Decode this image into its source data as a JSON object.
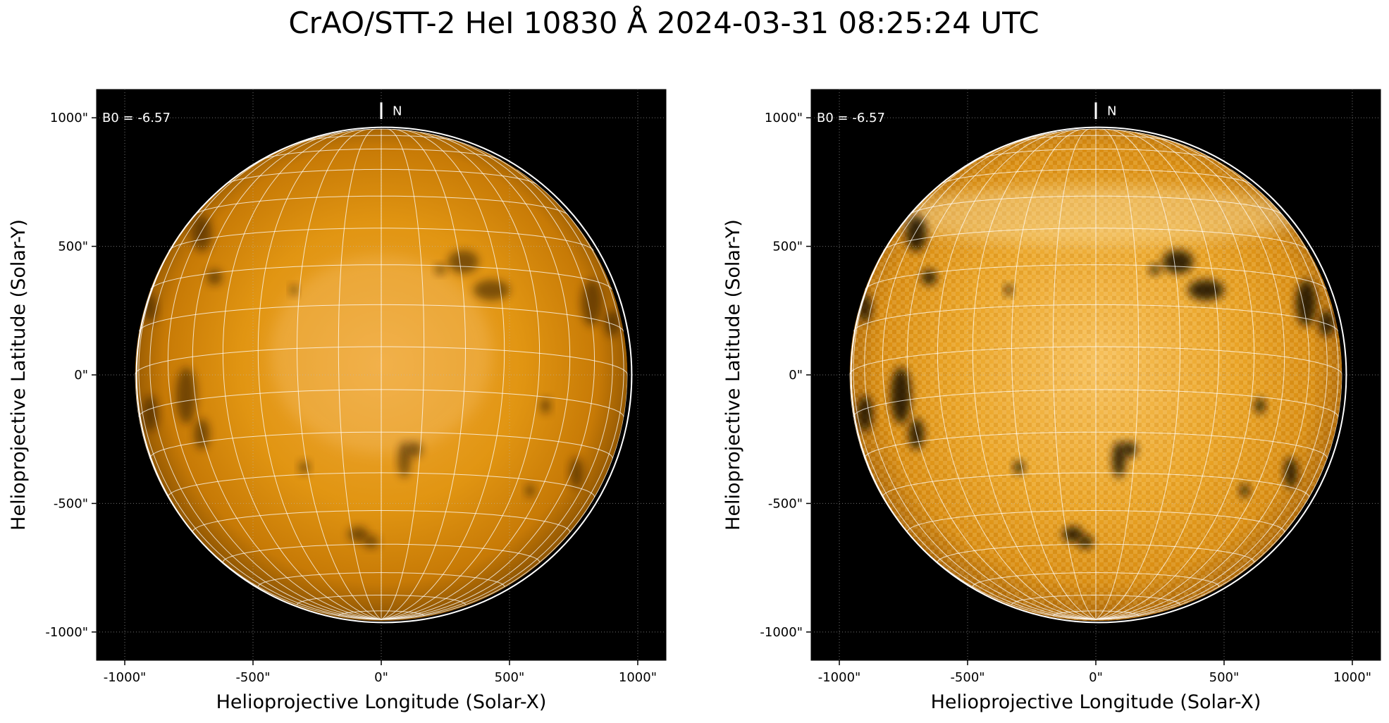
{
  "title": "CrAO/STT-2 HeI 10830 Å 2024-03-31 08:25:24 UTC",
  "colors": {
    "background": "#000000",
    "disk": "#e0940f",
    "grid": "#ffffff"
  },
  "panels": [
    {
      "name": "left",
      "b0_label": "B0 = -6.57",
      "north_label": "N",
      "xlabel": "Helioprojective Longitude (Solar-X)",
      "ylabel": "Helioprojective Latitude (Solar-Y)",
      "xticks": [
        "-1000\"",
        "-500\"",
        "0\"",
        "500\"",
        "1000\""
      ],
      "yticks": [
        "1000\"",
        "500\"",
        "0\"",
        "-500\"",
        "-1000\""
      ],
      "style": "smooth"
    },
    {
      "name": "right",
      "b0_label": "B0 = -6.57",
      "north_label": "N",
      "xlabel": "Helioprojective Longitude (Solar-X)",
      "ylabel": "Helioprojective Latitude (Solar-Y)",
      "xticks": [
        "-1000\"",
        "-500\"",
        "0\"",
        "500\"",
        "1000\""
      ],
      "yticks": [
        "1000\"",
        "500\"",
        "0\"",
        "-500\"",
        "-1000\""
      ],
      "style": "enhanced"
    }
  ]
}
